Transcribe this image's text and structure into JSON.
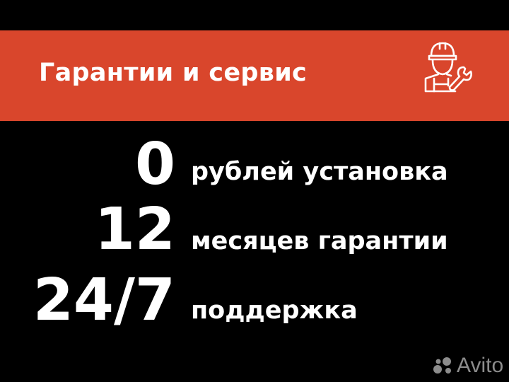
{
  "banner": {
    "title": "Гарантии и сервис",
    "icon": "worker-with-wrench-icon",
    "color": "#d9462c"
  },
  "features": [
    {
      "value": "0",
      "label": "рублей установка"
    },
    {
      "value": "12",
      "label": "месяцев гарантии"
    },
    {
      "value": "24/7",
      "label": "поддержка"
    }
  ],
  "watermark": {
    "text": "Avito"
  }
}
